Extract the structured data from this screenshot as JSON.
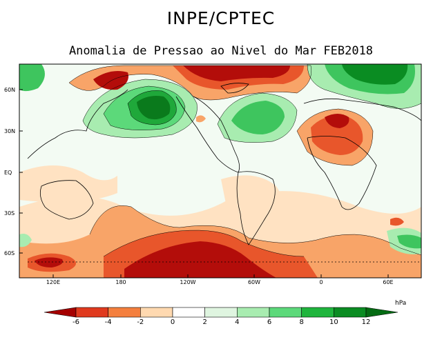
{
  "header": {
    "title": "INPE/CPTEC",
    "subtitle": "Anomalia de Pressao ao Nivel do Mar FEB2018"
  },
  "axes": {
    "lat_labels": [
      "60N",
      "30N",
      "EQ",
      "30S",
      "60S"
    ],
    "lon_labels": [
      "120E",
      "180",
      "120W",
      "60W",
      "0",
      "60E"
    ]
  },
  "colorbar": {
    "unit": "hPa",
    "tick_labels": [
      "-6",
      "-4",
      "-2",
      "0",
      "2",
      "4",
      "6",
      "8",
      "10",
      "12"
    ],
    "colors": [
      "#a50000",
      "#e03a1e",
      "#f47f3e",
      "#ffd9b0",
      "#ffffff",
      "#dff5e0",
      "#a8ecb0",
      "#5cd97a",
      "#1fb53d",
      "#0a8c22",
      "#046b13"
    ]
  }
}
